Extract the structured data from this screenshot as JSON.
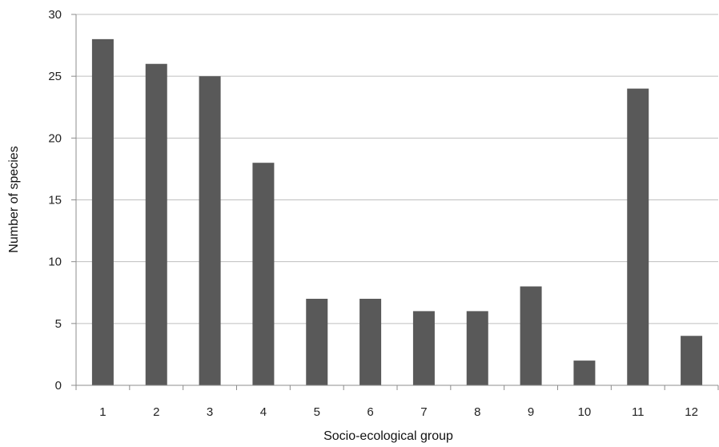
{
  "chart_data": {
    "type": "bar",
    "xlabel": "Socio-ecological group",
    "ylabel": "Number of species",
    "categories": [
      "1",
      "2",
      "3",
      "4",
      "5",
      "6",
      "7",
      "8",
      "9",
      "10",
      "11",
      "12"
    ],
    "values": [
      28,
      26,
      25,
      18,
      7,
      7,
      6,
      6,
      8,
      2,
      24,
      4
    ],
    "ylim": [
      0,
      30
    ],
    "yticks": [
      0,
      5,
      10,
      15,
      20,
      25,
      30
    ],
    "grid": true,
    "legend": "none",
    "bar_color": "#595959",
    "grid_color": "#bfbfbf",
    "axis_color": "#8c8c8c"
  }
}
